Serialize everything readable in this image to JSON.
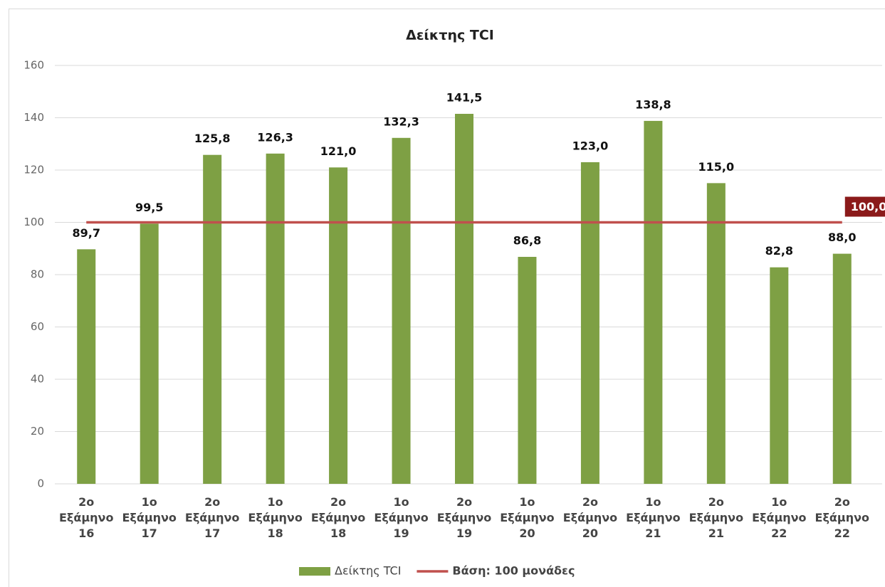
{
  "chart_data": {
    "type": "bar",
    "title": "Δείκτης TCI",
    "categories": [
      [
        "2ο",
        "Εξάμηνο",
        "16"
      ],
      [
        "1ο",
        "Εξάμηνο",
        "17"
      ],
      [
        "2ο",
        "Εξάμηνο",
        "17"
      ],
      [
        "1ο",
        "Εξάμηνο",
        "18"
      ],
      [
        "2ο",
        "Εξάμηνο",
        "18"
      ],
      [
        "1ο",
        "Εξάμηνο",
        "19"
      ],
      [
        "2ο",
        "Εξάμηνο",
        "19"
      ],
      [
        "1ο",
        "Εξάμηνο",
        "20"
      ],
      [
        "2ο",
        "Εξάμηνο",
        "20"
      ],
      [
        "1ο",
        "Εξάμηνο",
        "21"
      ],
      [
        "2ο",
        "Εξάμηνο",
        "21"
      ],
      [
        "1ο",
        "Εξάμηνο",
        "22"
      ],
      [
        "2ο",
        "Εξάμηνο",
        "22"
      ]
    ],
    "series": [
      {
        "name": "Δείκτης TCI",
        "type": "bar",
        "color": "#7ea044",
        "values": [
          89.7,
          99.5,
          125.8,
          126.3,
          121.0,
          132.3,
          141.5,
          86.8,
          123.0,
          138.8,
          115.0,
          82.8,
          88.0
        ],
        "value_labels": [
          "89,7",
          "99,5",
          "125,8",
          "126,3",
          "121,0",
          "132,3",
          "141,5",
          "86,8",
          "123,0",
          "138,8",
          "115,0",
          "82,8",
          "88,0"
        ]
      },
      {
        "name": "Βάση: 100 μονάδες",
        "type": "line",
        "color": "#c0504d",
        "values": [
          100,
          100,
          100,
          100,
          100,
          100,
          100,
          100,
          100,
          100,
          100,
          100,
          100
        ],
        "value_labels": [
          null,
          null,
          null,
          null,
          null,
          null,
          null,
          null,
          null,
          null,
          null,
          null,
          "100,0"
        ]
      }
    ],
    "ylim": [
      0,
      160
    ],
    "yticks": [
      0,
      20,
      40,
      60,
      80,
      100,
      120,
      140,
      160
    ],
    "grid": true,
    "legend": "bottom"
  }
}
